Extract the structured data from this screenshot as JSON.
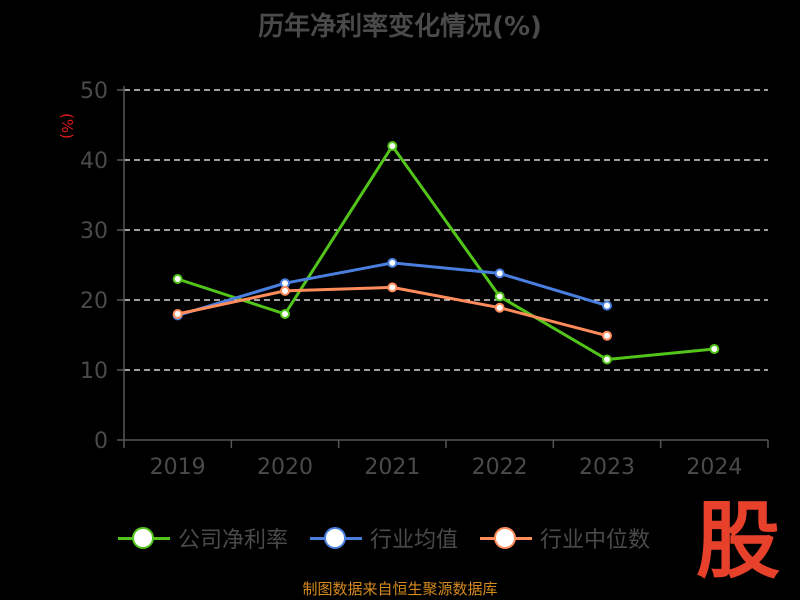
{
  "title": "历年净利率变化情况(%)",
  "chart_data": {
    "type": "line",
    "title": "历年净利率变化情况(%)",
    "ylabel": "(%)",
    "categories": [
      "2019",
      "2020",
      "2021",
      "2022",
      "2023",
      "2024"
    ],
    "ylim": [
      0,
      50
    ],
    "yticks": [
      0,
      10,
      20,
      30,
      40,
      50
    ],
    "grid": true,
    "legend_position": "bottom",
    "series": [
      {
        "name": "公司净利率",
        "color": "#52c41a",
        "values": [
          23.0,
          18.0,
          42.0,
          20.5,
          11.5,
          13.0
        ]
      },
      {
        "name": "行业均值",
        "color": "#4a7fe0",
        "values": [
          17.8,
          22.4,
          25.3,
          23.8,
          19.2,
          null
        ]
      },
      {
        "name": "行业中位数",
        "color": "#ff8c5a",
        "values": [
          18.0,
          21.3,
          21.8,
          18.9,
          14.9,
          null
        ]
      }
    ]
  },
  "footer": "制图数据来自恒生聚源数据库",
  "logo_text": "股",
  "colors": {
    "background": "#000000",
    "axis": "#555555",
    "grid": "#ffffff",
    "text": "#4a4a4a"
  }
}
